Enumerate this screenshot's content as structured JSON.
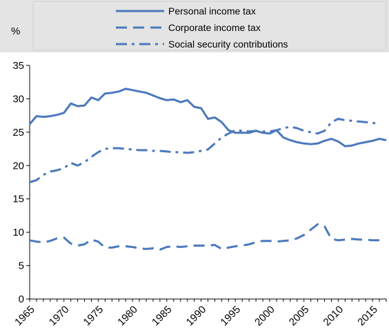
{
  "chart_data": {
    "type": "line",
    "unit": "%",
    "ylim": [
      0,
      35
    ],
    "yticks": [
      0,
      5,
      10,
      15,
      20,
      25,
      30,
      35
    ],
    "xlim": [
      1965,
      2017
    ],
    "xticks": [
      "1965",
      "1970",
      "1975",
      "1980",
      "1985",
      "1990",
      "1995",
      "2000",
      "2005",
      "2010",
      "2015"
    ],
    "grid": false,
    "legend_position": "top",
    "series": [
      {
        "name": "Personal income tax",
        "style": "solid",
        "color": "#4a78bd",
        "x": [
          1965,
          1966,
          1967,
          1968,
          1969,
          1970,
          1971,
          1972,
          1973,
          1974,
          1975,
          1976,
          1977,
          1978,
          1979,
          1980,
          1981,
          1982,
          1983,
          1984,
          1985,
          1986,
          1987,
          1988,
          1989,
          1990,
          1991,
          1992,
          1993,
          1994,
          1995,
          1996,
          1997,
          1998,
          1999,
          2000,
          2001,
          2002,
          2003,
          2004,
          2005,
          2006,
          2007,
          2008,
          2009,
          2010,
          2011,
          2012,
          2013,
          2014,
          2015,
          2016,
          2017
        ],
        "y": [
          26.2,
          27.4,
          27.3,
          27.4,
          27.6,
          27.9,
          29.3,
          28.9,
          29.0,
          30.2,
          29.8,
          30.8,
          30.9,
          31.1,
          31.5,
          31.3,
          31.1,
          30.9,
          30.5,
          30.1,
          29.8,
          29.9,
          29.5,
          29.8,
          28.8,
          28.6,
          27.0,
          27.2,
          26.5,
          25.3,
          24.9,
          24.9,
          24.9,
          25.2,
          24.9,
          24.8,
          25.3,
          24.2,
          23.8,
          23.5,
          23.3,
          23.2,
          23.3,
          23.7,
          24.0,
          23.6,
          22.9,
          23.0,
          23.3,
          23.5,
          23.7,
          24.0,
          23.8
        ]
      },
      {
        "name": "Corporate income tax",
        "style": "dashed",
        "color": "#4a78bd",
        "x": [
          1965,
          1966,
          1967,
          1968,
          1969,
          1970,
          1971,
          1972,
          1973,
          1974,
          1975,
          1976,
          1977,
          1978,
          1979,
          1980,
          1981,
          1982,
          1983,
          1984,
          1985,
          1986,
          1987,
          1988,
          1989,
          1990,
          1991,
          1992,
          1993,
          1994,
          1995,
          1996,
          1997,
          1998,
          1999,
          2000,
          2001,
          2002,
          2003,
          2004,
          2005,
          2006,
          2007,
          2008,
          2009,
          2010,
          2011,
          2012,
          2013,
          2014,
          2015,
          2016
        ],
        "y": [
          8.8,
          8.6,
          8.5,
          8.7,
          9.1,
          9.2,
          8.3,
          8.0,
          8.2,
          8.9,
          8.6,
          7.7,
          7.7,
          7.9,
          7.9,
          7.8,
          7.6,
          7.5,
          7.6,
          7.4,
          7.8,
          7.9,
          7.8,
          7.9,
          8.0,
          8.0,
          8.0,
          8.1,
          7.5,
          7.7,
          7.9,
          8.0,
          8.2,
          8.5,
          8.7,
          8.7,
          8.6,
          8.7,
          8.8,
          9.1,
          9.6,
          10.4,
          11.2,
          10.9,
          9.0,
          8.8,
          8.9,
          9.0,
          8.9,
          8.9,
          8.8,
          8.8
        ]
      },
      {
        "name": "Social security contributions",
        "style": "dashdot",
        "color": "#4a78bd",
        "x": [
          1965,
          1966,
          1967,
          1968,
          1969,
          1970,
          1971,
          1972,
          1973,
          1974,
          1975,
          1976,
          1977,
          1978,
          1979,
          1980,
          1981,
          1982,
          1983,
          1984,
          1985,
          1986,
          1987,
          1988,
          1989,
          1990,
          1991,
          1992,
          1993,
          1994,
          1995,
          1996,
          1997,
          1998,
          1999,
          2000,
          2001,
          2002,
          2003,
          2004,
          2005,
          2006,
          2007,
          2008,
          2009,
          2010,
          2011,
          2012,
          2013,
          2014,
          2015,
          2016
        ],
        "y": [
          17.5,
          17.8,
          18.6,
          19.1,
          19.3,
          19.6,
          20.4,
          20.0,
          20.5,
          21.3,
          22.0,
          22.5,
          22.6,
          22.6,
          22.5,
          22.4,
          22.3,
          22.3,
          22.2,
          22.2,
          22.1,
          22.0,
          22.0,
          21.9,
          22.0,
          22.2,
          22.4,
          23.3,
          24.2,
          24.8,
          25.3,
          25.2,
          25.1,
          25.2,
          25.1,
          25.1,
          25.3,
          25.6,
          25.8,
          25.6,
          25.2,
          25.0,
          24.8,
          25.2,
          26.5,
          27.0,
          26.8,
          26.7,
          26.6,
          26.5,
          26.4,
          26.2
        ]
      }
    ]
  }
}
